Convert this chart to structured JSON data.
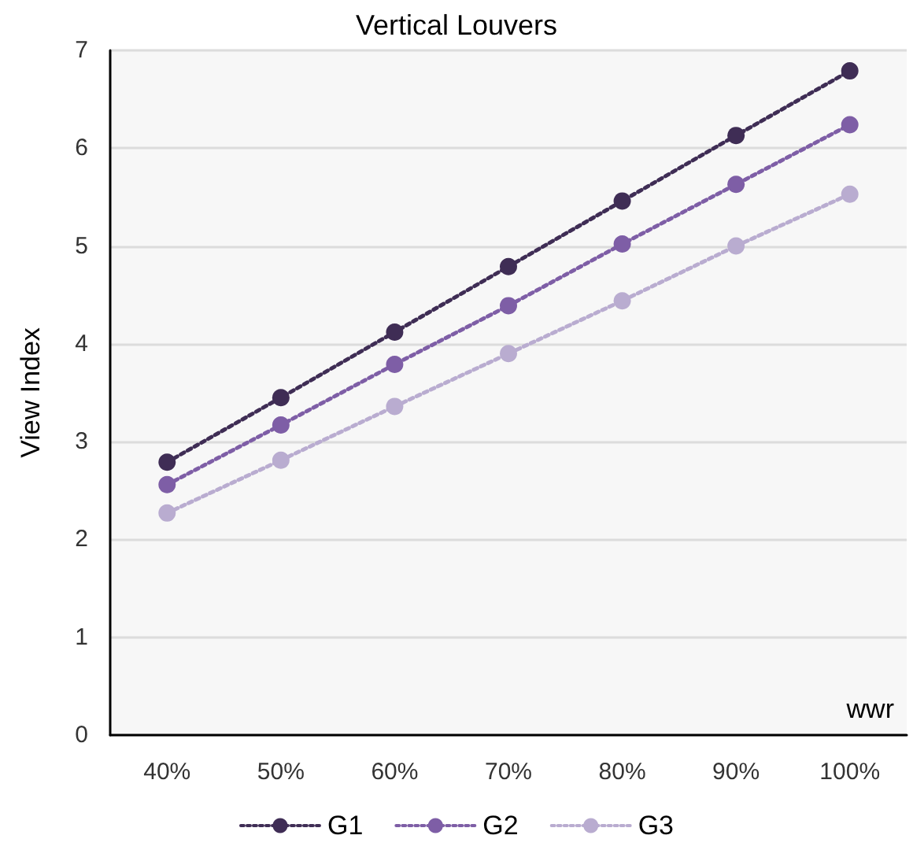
{
  "chart_data": {
    "type": "line",
    "title": "Vertical Louvers",
    "xlabel": "wwr",
    "ylabel": "View Index",
    "categories": [
      "40%",
      "50%",
      "60%",
      "70%",
      "80%",
      "90%",
      "100%"
    ],
    "series": [
      {
        "name": "G1",
        "color": "#3f2d55",
        "values": [
          2.79,
          3.45,
          4.12,
          4.79,
          5.46,
          6.13,
          6.79
        ]
      },
      {
        "name": "G2",
        "color": "#7e5ea6",
        "values": [
          2.56,
          3.17,
          3.79,
          4.39,
          5.02,
          5.63,
          6.24
        ]
      },
      {
        "name": "G3",
        "color": "#b9acd0",
        "values": [
          2.27,
          2.81,
          3.36,
          3.9,
          4.44,
          5.0,
          5.53
        ]
      }
    ],
    "ylim": [
      0,
      7
    ],
    "yticks": [
      0,
      1,
      2,
      3,
      4,
      5,
      6,
      7
    ],
    "grid": "y",
    "legend": "bottom",
    "marker": "circle",
    "line_style": "dotted"
  }
}
